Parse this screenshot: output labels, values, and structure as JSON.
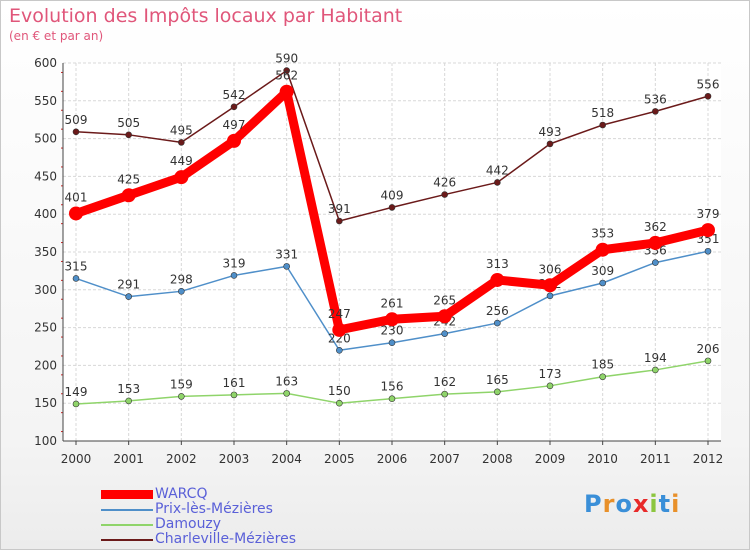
{
  "header": {
    "title": "Evolution des Impôts locaux par Habitant",
    "subtitle": "(en € et par an)"
  },
  "logo": {
    "text": "Proxiti",
    "colors": [
      "#3a8fd8",
      "#e8902a",
      "#3a8fd8",
      "#e82a2a",
      "#8cc63f",
      "#3a8fd8",
      "#e8902a"
    ]
  },
  "chart_data": {
    "type": "line",
    "title": "Evolution des Impôts locaux par Habitant",
    "subtitle": "(en € et par an)",
    "categories": [
      "2000",
      "2001",
      "2002",
      "2003",
      "2004",
      "2005",
      "2006",
      "2007",
      "2008",
      "2009",
      "2010",
      "2011",
      "2012"
    ],
    "ylim": [
      100,
      600
    ],
    "yticks": [
      100,
      150,
      200,
      250,
      300,
      350,
      400,
      450,
      500,
      550,
      600
    ],
    "grid": true,
    "legend_position": "bottom-left",
    "series": [
      {
        "name": "Charleville-Mézières",
        "color": "#6b1a1a",
        "values": [
          509,
          505,
          495,
          542,
          590,
          391,
          409,
          426,
          442,
          493,
          518,
          536,
          556
        ]
      },
      {
        "name": "Prix-lès-Mézières",
        "color": "#4f8fc9",
        "values": [
          315,
          291,
          298,
          319,
          331,
          220,
          230,
          242,
          256,
          292,
          309,
          336,
          351
        ]
      },
      {
        "name": "Damouzy",
        "color": "#8fd46a",
        "values": [
          149,
          153,
          159,
          161,
          163,
          150,
          156,
          162,
          165,
          173,
          185,
          194,
          206
        ]
      },
      {
        "name": "WARCQ",
        "color": "#ff0000",
        "values": [
          401,
          425,
          449,
          497,
          562,
          247,
          261,
          265,
          313,
          306,
          353,
          362,
          379
        ]
      }
    ],
    "legend_order": [
      "WARCQ",
      "Prix-lès-Mézières",
      "Damouzy",
      "Charleville-Mézières"
    ]
  }
}
